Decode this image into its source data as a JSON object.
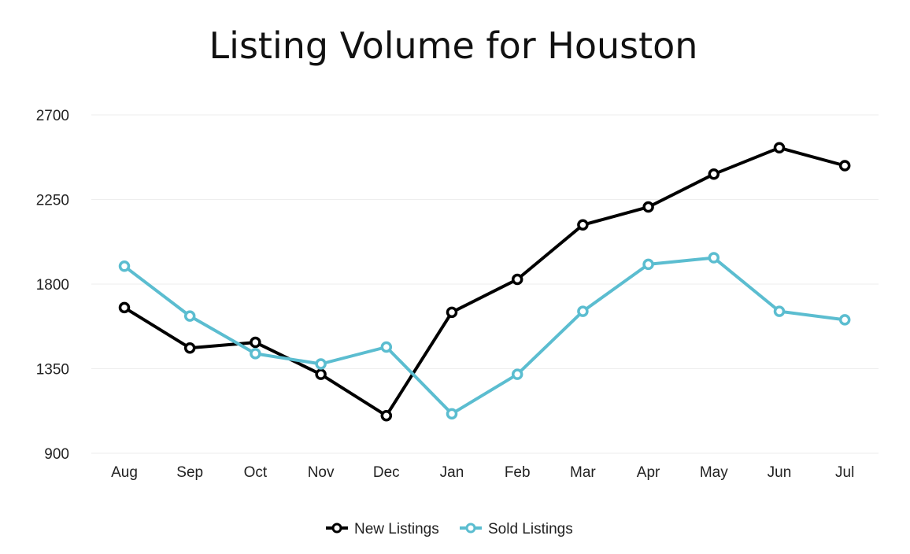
{
  "chart_data": {
    "type": "line",
    "title": "Listing Volume for Houston",
    "xlabel": "",
    "ylabel": "",
    "categories": [
      "Aug",
      "Sep",
      "Oct",
      "Nov",
      "Dec",
      "Jan",
      "Feb",
      "Mar",
      "Apr",
      "May",
      "Jun",
      "Jul"
    ],
    "ylim": [
      900,
      2700
    ],
    "yticks": [
      900,
      1350,
      1800,
      2250,
      2700
    ],
    "grid": true,
    "legend_position": "bottom",
    "series": [
      {
        "name": "New Listings",
        "color": "#000000",
        "values": [
          1675,
          1460,
          1490,
          1320,
          1100,
          1650,
          1825,
          2115,
          2210,
          2385,
          2525,
          2430
        ]
      },
      {
        "name": "Sold Listings",
        "color": "#5bbdd0",
        "values": [
          1895,
          1630,
          1430,
          1375,
          1465,
          1110,
          1320,
          1655,
          1905,
          1940,
          1655,
          1610
        ]
      }
    ]
  }
}
